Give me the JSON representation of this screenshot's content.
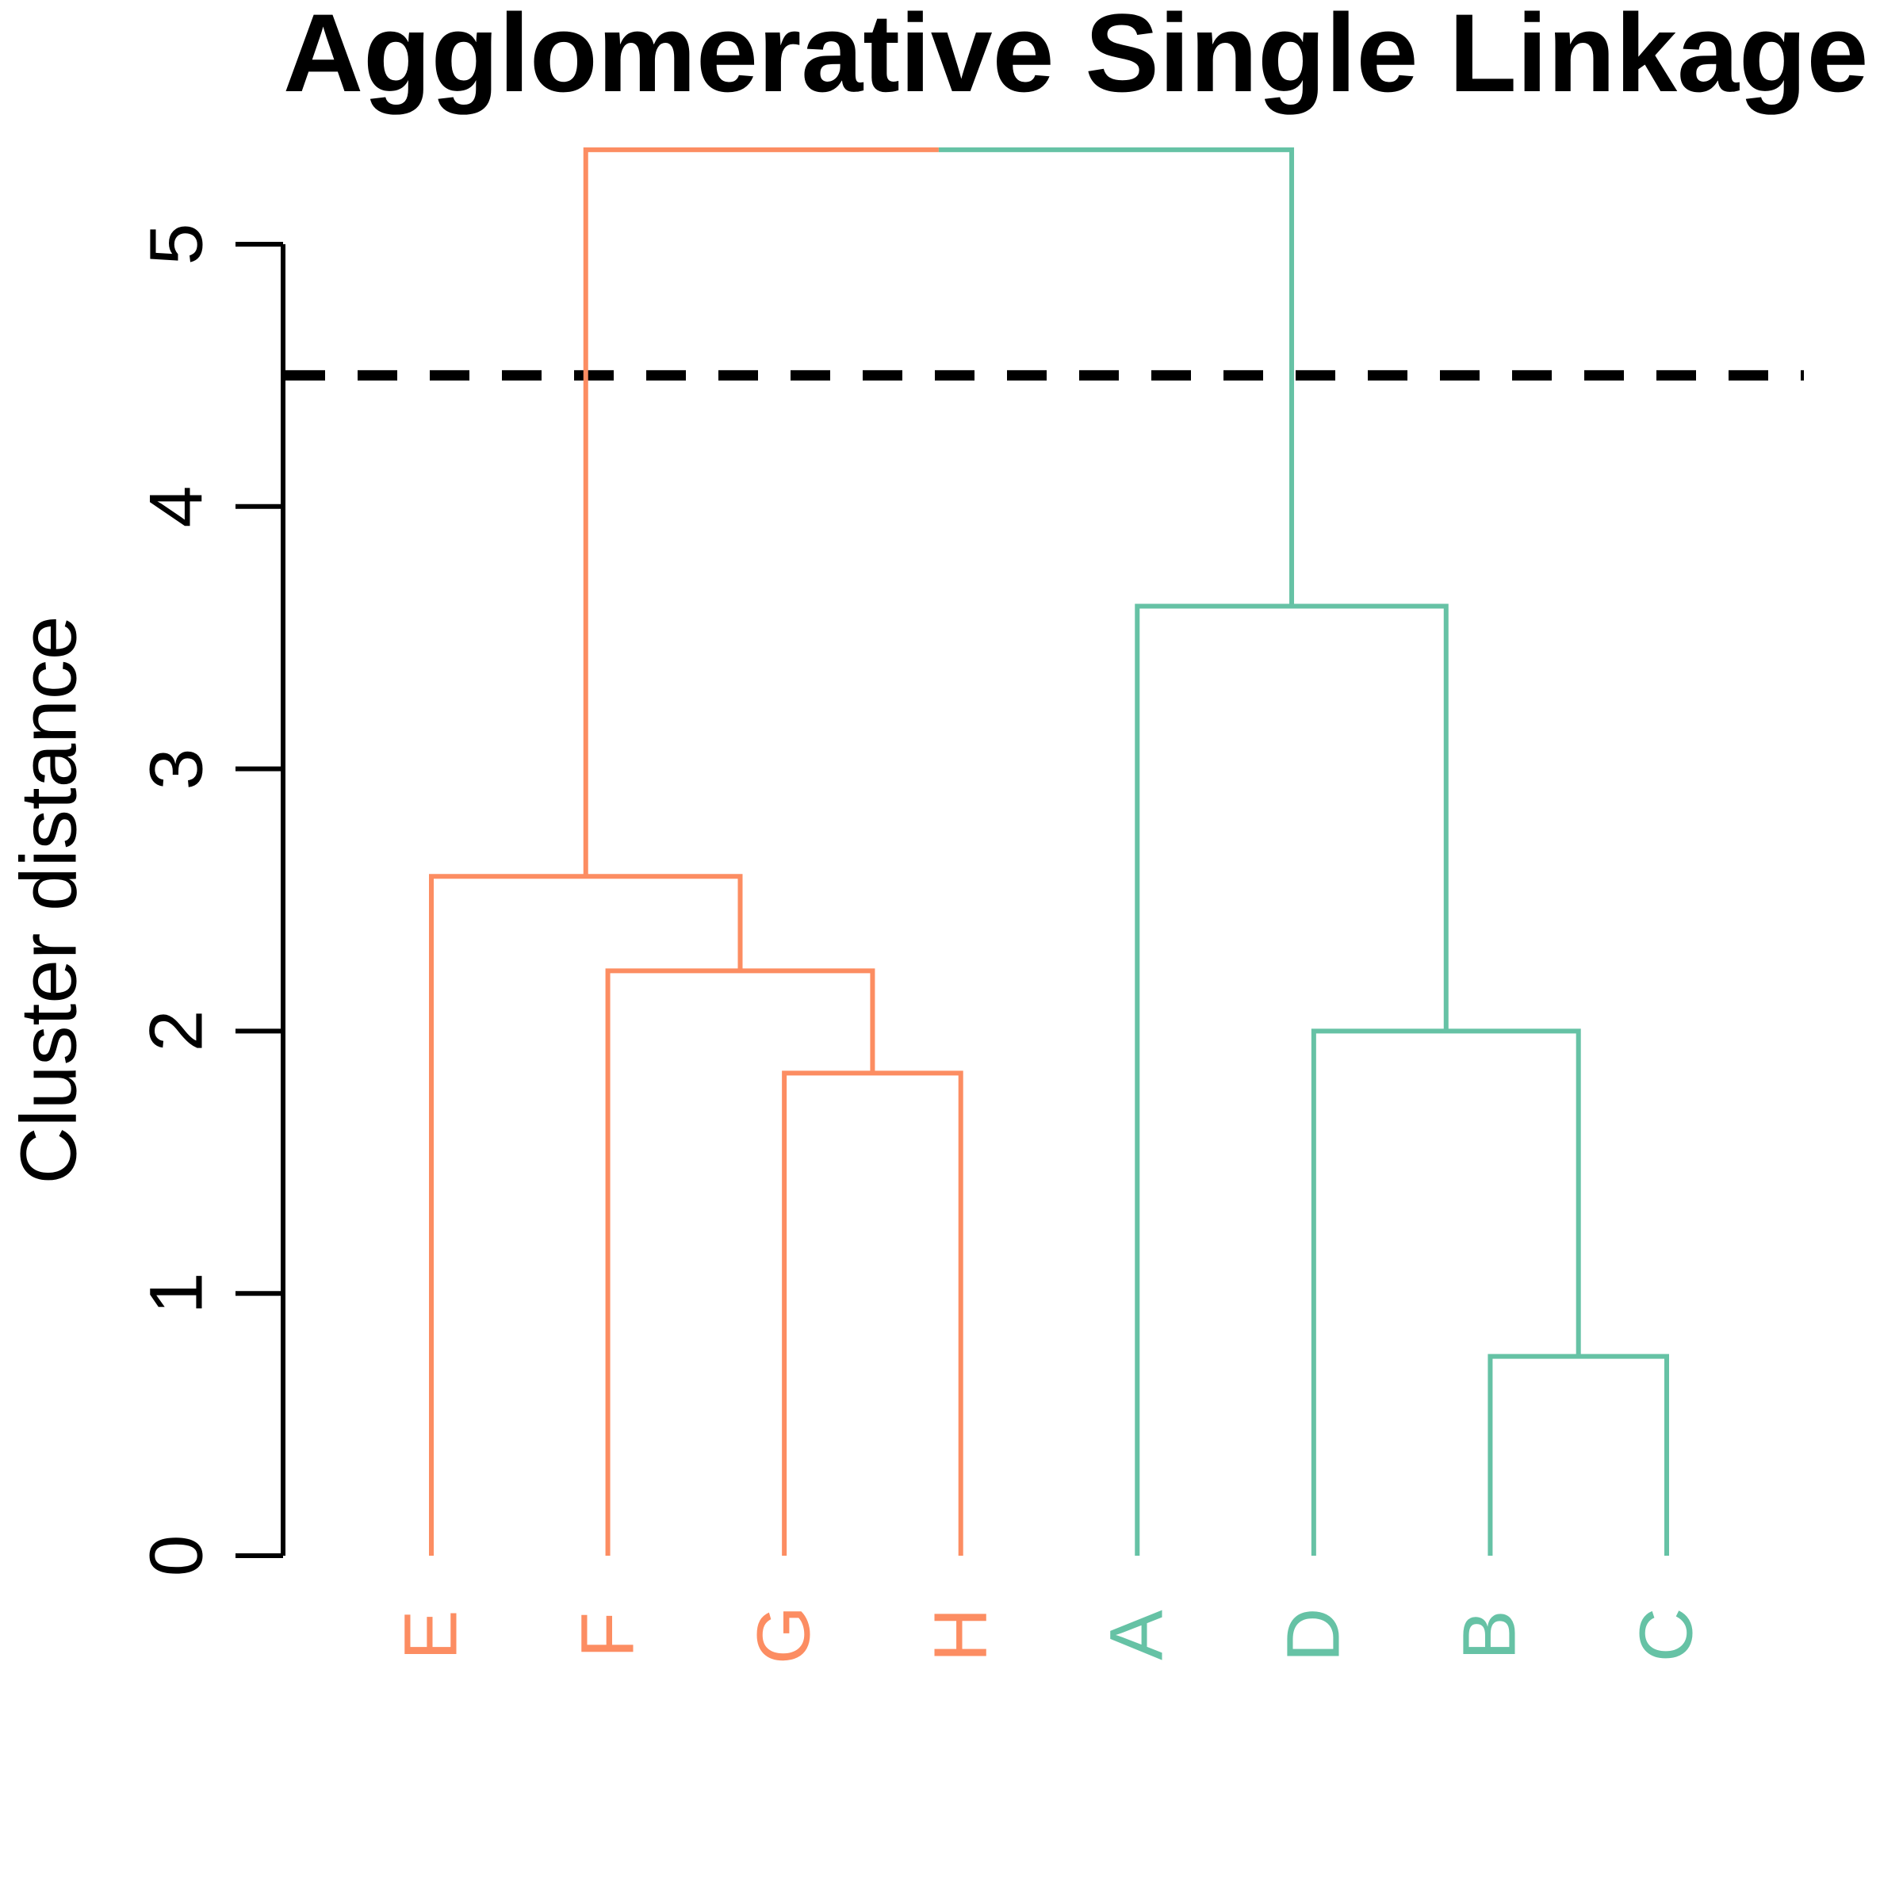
{
  "chart_data": {
    "type": "dendrogram",
    "title": "Agglomerative Single Linkage",
    "ylabel": "Cluster distance",
    "yticks": [
      "0",
      "1",
      "2",
      "3",
      "4",
      "5"
    ],
    "ylim": [
      0,
      5.45
    ],
    "grid": false,
    "leaves": [
      "E",
      "F",
      "G",
      "H",
      "A",
      "D",
      "B",
      "C"
    ],
    "clusters": [
      {
        "name": "cluster-EFGH",
        "color": "#FC8D62",
        "leaves": [
          "E",
          "F",
          "G",
          "H"
        ]
      },
      {
        "name": "cluster-ADBC",
        "color": "#66C2A5",
        "leaves": [
          "A",
          "D",
          "B",
          "C"
        ]
      }
    ],
    "merges": [
      {
        "id": "GH",
        "children": [
          "G",
          "H"
        ],
        "height": 1.84,
        "color": "#FC8D62"
      },
      {
        "id": "FGH",
        "children": [
          "F",
          "GH"
        ],
        "height": 2.23,
        "color": "#FC8D62"
      },
      {
        "id": "EFGH",
        "children": [
          "E",
          "FGH"
        ],
        "height": 2.59,
        "color": "#FC8D62"
      },
      {
        "id": "BC",
        "children": [
          "B",
          "C"
        ],
        "height": 0.76,
        "color": "#66C2A5"
      },
      {
        "id": "DBC",
        "children": [
          "D",
          "BC"
        ],
        "height": 2.0,
        "color": "#66C2A5"
      },
      {
        "id": "ADBC",
        "children": [
          "A",
          "DBC"
        ],
        "height": 3.62,
        "color": "#66C2A5"
      },
      {
        "id": "root",
        "children": [
          "EFGH",
          "ADBC"
        ],
        "height": 5.36,
        "color": "split"
      }
    ],
    "cut_line": {
      "height": 4.5,
      "style": "dashed",
      "color": "#000000"
    },
    "leaf_label_colors": {
      "E": "#FC8D62",
      "F": "#FC8D62",
      "G": "#FC8D62",
      "H": "#FC8D62",
      "A": "#66C2A5",
      "D": "#66C2A5",
      "B": "#66C2A5",
      "C": "#66C2A5"
    }
  }
}
